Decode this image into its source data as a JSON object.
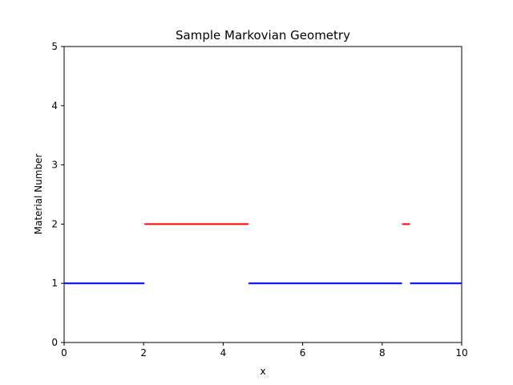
{
  "chart_data": {
    "type": "line",
    "title": "Sample Markovian Geometry",
    "xlabel": "x",
    "ylabel": "Material Number",
    "xlim": [
      0,
      10
    ],
    "ylim": [
      0,
      5
    ],
    "x_ticks": [
      0,
      2,
      4,
      6,
      8,
      10
    ],
    "y_ticks": [
      0,
      1,
      2,
      3,
      4,
      5
    ],
    "grid": false,
    "legend": "none",
    "segments": [
      {
        "material": 1,
        "x": [
          0.0,
          2.02
        ],
        "color": "#0000ff"
      },
      {
        "material": 2,
        "x": [
          2.02,
          4.64
        ],
        "color": "#ff0000"
      },
      {
        "material": 1,
        "x": [
          4.64,
          8.5
        ],
        "color": "#0000ff"
      },
      {
        "material": 2,
        "x": [
          8.5,
          8.7
        ],
        "color": "#ff0000"
      },
      {
        "material": 1,
        "x": [
          8.7,
          10.0
        ],
        "color": "#0000ff"
      }
    ]
  }
}
